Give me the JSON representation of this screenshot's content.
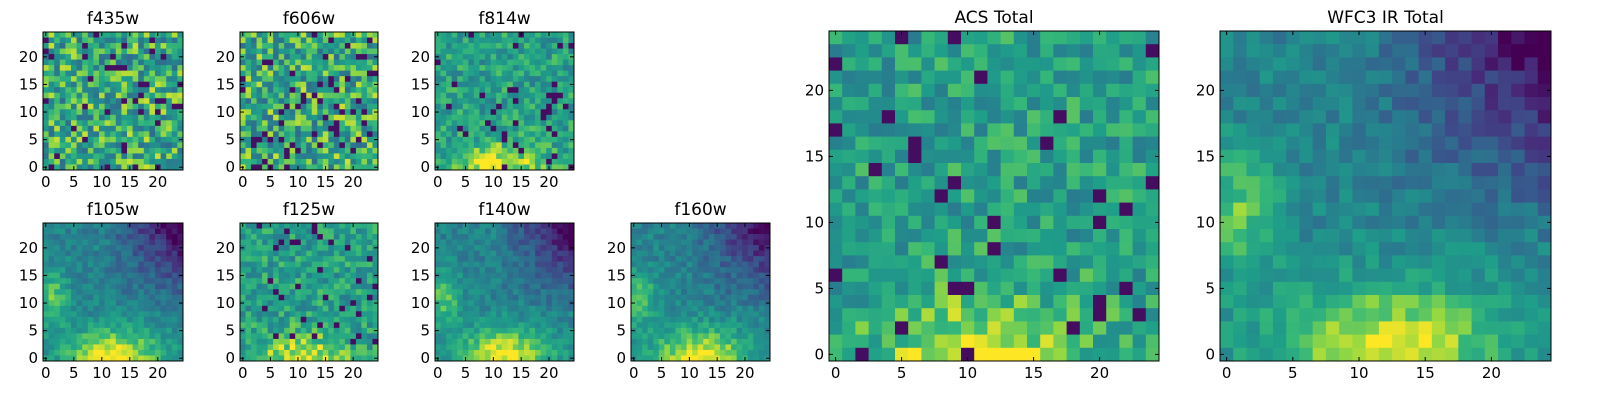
{
  "chart_data": [
    {
      "type": "heatmap",
      "title": "f435w",
      "grid": "25x25",
      "xlim": [
        0,
        24
      ],
      "ylim": [
        0,
        24
      ],
      "xticks": [
        0,
        5,
        10,
        15,
        20
      ],
      "yticks": [
        0,
        5,
        10,
        15,
        20
      ],
      "pattern": "noise",
      "colormap": "viridis"
    },
    {
      "type": "heatmap",
      "title": "f606w",
      "grid": "25x25",
      "xlim": [
        0,
        24
      ],
      "ylim": [
        0,
        24
      ],
      "xticks": [
        0,
        5,
        10,
        15,
        20
      ],
      "yticks": [
        0,
        5,
        10,
        15,
        20
      ],
      "pattern": "noise",
      "colormap": "viridis"
    },
    {
      "type": "heatmap",
      "title": "f814w",
      "grid": "25x25",
      "xlim": [
        0,
        24
      ],
      "ylim": [
        0,
        24
      ],
      "xticks": [
        0,
        5,
        10,
        15,
        20
      ],
      "yticks": [
        0,
        5,
        10,
        15,
        20
      ],
      "pattern": "mixed",
      "colormap": "viridis"
    },
    {
      "type": "heatmap",
      "title": "f105w",
      "grid": "25x25",
      "xlim": [
        0,
        24
      ],
      "ylim": [
        0,
        24
      ],
      "xticks": [
        0,
        5,
        10,
        15,
        20
      ],
      "yticks": [
        0,
        5,
        10,
        15,
        20
      ],
      "pattern": "gradient",
      "colormap": "viridis"
    },
    {
      "type": "heatmap",
      "title": "f125w",
      "grid": "25x25",
      "xlim": [
        0,
        24
      ],
      "ylim": [
        0,
        24
      ],
      "xticks": [
        0,
        5,
        10,
        15,
        20
      ],
      "yticks": [
        0,
        5,
        10,
        15,
        20
      ],
      "pattern": "mixed",
      "colormap": "viridis"
    },
    {
      "type": "heatmap",
      "title": "f140w",
      "grid": "25x25",
      "xlim": [
        0,
        24
      ],
      "ylim": [
        0,
        24
      ],
      "xticks": [
        0,
        5,
        10,
        15,
        20
      ],
      "yticks": [
        0,
        5,
        10,
        15,
        20
      ],
      "pattern": "gradient",
      "colormap": "viridis"
    },
    {
      "type": "heatmap",
      "title": "f160w",
      "grid": "25x25",
      "xlim": [
        0,
        24
      ],
      "ylim": [
        0,
        24
      ],
      "xticks": [
        0,
        5,
        10,
        15,
        20
      ],
      "yticks": [
        0,
        5,
        10,
        15,
        20
      ],
      "pattern": "gradient",
      "colormap": "viridis"
    },
    {
      "type": "heatmap",
      "title": "ACS Total",
      "grid": "25x25",
      "xlim": [
        0,
        24
      ],
      "ylim": [
        0,
        24
      ],
      "xticks": [
        0,
        5,
        10,
        15,
        20
      ],
      "yticks": [
        0,
        5,
        10,
        15,
        20
      ],
      "pattern": "mixed",
      "colormap": "viridis"
    },
    {
      "type": "heatmap",
      "title": "WFC3 IR Total",
      "grid": "25x25",
      "xlim": [
        0,
        24
      ],
      "ylim": [
        0,
        24
      ],
      "xticks": [
        0,
        5,
        10,
        15,
        20
      ],
      "yticks": [
        0,
        5,
        10,
        15,
        20
      ],
      "pattern": "gradient",
      "colormap": "viridis"
    }
  ]
}
